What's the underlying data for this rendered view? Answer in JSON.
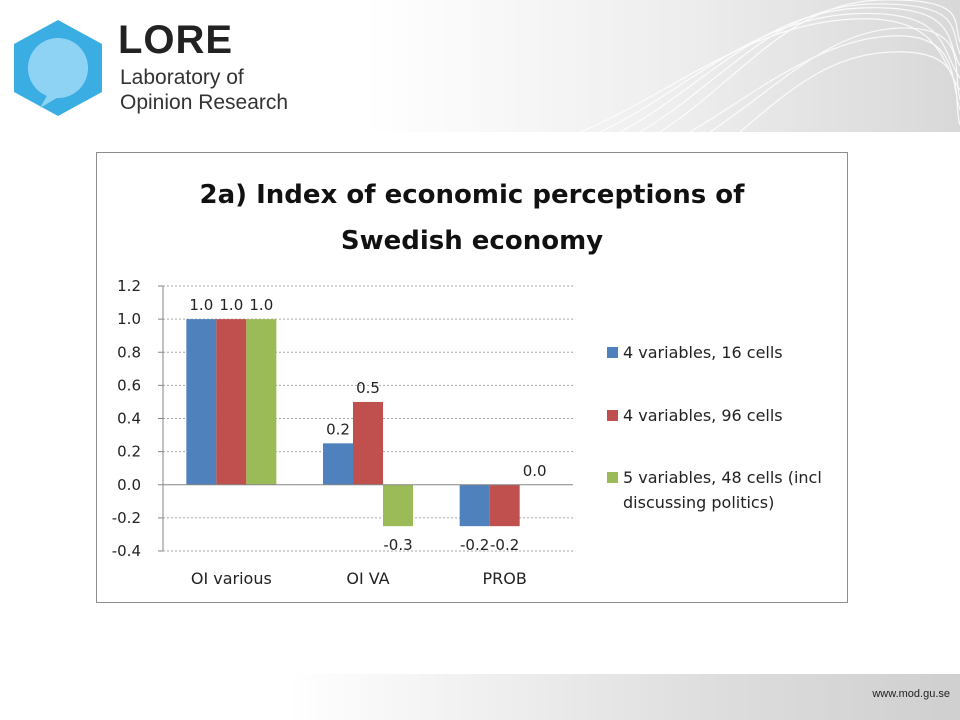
{
  "brand": {
    "name": "LORE",
    "line1": "Laboratory of",
    "line2": "Opinion Research"
  },
  "footer": {
    "url": "www.mod.gu.se"
  },
  "colors": {
    "logo": "#3aaee3",
    "logo_light": "#8fd3f4"
  },
  "chart_data": {
    "type": "bar",
    "title_lines": [
      "2a) Index of economic perceptions of",
      "Swedish economy"
    ],
    "categories": [
      "OI various",
      "OI VA",
      "PROB"
    ],
    "series": [
      {
        "name": "4 variables, 16 cells",
        "color": "#4f81bd",
        "values": [
          1.0,
          0.25,
          -0.25
        ],
        "labels": [
          "1.0",
          "0.2",
          "-0.2"
        ]
      },
      {
        "name": "4 variables, 96 cells",
        "color": "#c0504d",
        "values": [
          1.0,
          0.5,
          -0.25
        ],
        "labels": [
          "1.0",
          "0.5",
          "-0.2"
        ]
      },
      {
        "name_lines": [
          "5 variables, 48 cells (incl",
          "discussing politics)"
        ],
        "color": "#9bbb59",
        "values": [
          1.0,
          -0.25,
          0.0
        ],
        "labels": [
          "1.0",
          "-0.3",
          "0.0"
        ]
      }
    ],
    "yticks": [
      "1.2",
      "1.0",
      "0.8",
      "0.6",
      "0.4",
      "0.2",
      "0.0",
      "-0.2",
      "-0.4"
    ],
    "ylim": [
      -0.4,
      1.2
    ],
    "grid": true,
    "legend_position": "right"
  }
}
